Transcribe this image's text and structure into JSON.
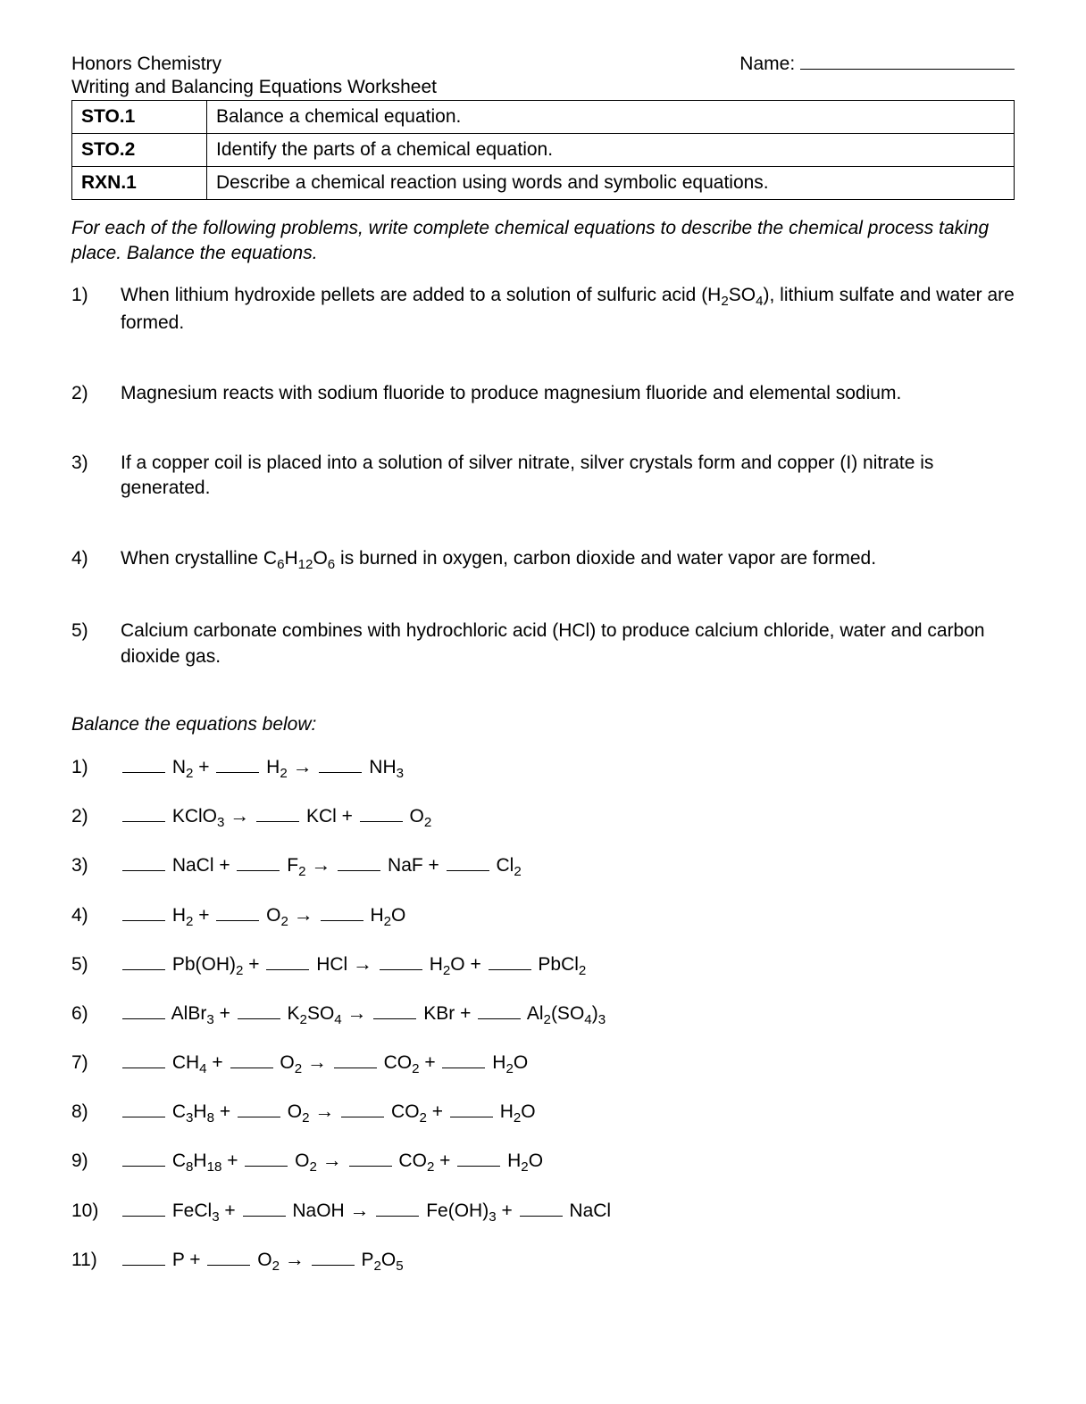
{
  "header": {
    "course": "Honors Chemistry",
    "name_label": "Name:",
    "subtitle": "Writing and Balancing Equations Worksheet"
  },
  "objectives": [
    {
      "code": "STO.1",
      "desc": "Balance a chemical equation."
    },
    {
      "code": "STO.2",
      "desc": "Identify the parts of a chemical equation."
    },
    {
      "code": "RXN.1",
      "desc": "Describe a chemical reaction using words and symbolic equations."
    }
  ],
  "instructions": "For each of the following problems, write complete chemical equations to describe the chemical process taking place.  Balance the equations.",
  "problems": [
    {
      "n": "1)",
      "html": "When lithium hydroxide pellets are added to a solution of sulfuric acid (H<sub>2</sub>SO<sub>4</sub>), lithium sulfate and water are formed."
    },
    {
      "n": "2)",
      "html": "Magnesium reacts with sodium fluoride to produce magnesium fluoride and elemental sodium."
    },
    {
      "n": "3)",
      "html": "If a copper coil is placed into a solution of silver nitrate, silver crystals form and copper (I) nitrate is generated."
    },
    {
      "n": "4)",
      "html": "When crystalline C<sub>6</sub>H<sub>12</sub>O<sub>6</sub> is burned in oxygen, carbon dioxide and water vapor are formed."
    },
    {
      "n": "5)",
      "html": "Calcium carbonate combines with hydrochloric acid (HCl) to produce calcium chloride, water and carbon dioxide gas."
    }
  ],
  "balance_heading": "Balance the equations below:",
  "equations": [
    {
      "n": "1)",
      "terms": [
        "N<sub>2</sub>",
        "+",
        "H<sub>2</sub>",
        "→",
        "NH<sub>3</sub>"
      ]
    },
    {
      "n": "2)",
      "terms": [
        "KClO<sub>3</sub>",
        "→",
        "KCl",
        "+",
        "O<sub>2</sub>"
      ]
    },
    {
      "n": "3)",
      "terms": [
        "NaCl",
        "+",
        "F<sub>2</sub>",
        "→",
        "NaF",
        "+",
        "Cl<sub>2</sub>"
      ]
    },
    {
      "n": "4)",
      "terms": [
        "H<sub>2</sub>",
        "+",
        "O<sub>2</sub>",
        "→",
        "H<sub>2</sub>O"
      ]
    },
    {
      "n": "5)",
      "terms": [
        "Pb(OH)<sub>2</sub>",
        "+",
        "HCl",
        "→",
        "H<sub>2</sub>O",
        "+",
        "PbCl<sub>2</sub>"
      ]
    },
    {
      "n": "6)",
      "terms": [
        "AlBr<sub>3</sub>",
        "+",
        "K<sub>2</sub>SO<sub>4</sub>",
        "→",
        "KBr",
        "+",
        "Al<sub>2</sub>(SO<sub>4</sub>)<sub>3</sub>"
      ]
    },
    {
      "n": "7)",
      "terms": [
        "CH<sub>4</sub>",
        "+",
        "O<sub>2</sub>",
        "→",
        "CO<sub>2</sub>",
        "+",
        "H<sub>2</sub>O"
      ]
    },
    {
      "n": "8)",
      "terms": [
        "C<sub>3</sub>H<sub>8</sub>",
        "+",
        "O<sub>2</sub>",
        "→",
        "CO<sub>2</sub>",
        "+",
        "H<sub>2</sub>O"
      ]
    },
    {
      "n": "9)",
      "terms": [
        "C<sub>8</sub>H<sub>18</sub>",
        "+",
        "O<sub>2</sub>",
        "→",
        "CO<sub>2</sub>",
        "+",
        "H<sub>2</sub>O"
      ]
    },
    {
      "n": "10)",
      "terms": [
        "FeCl<sub>3</sub>",
        "+",
        "NaOH",
        "→",
        "Fe(OH)<sub>3</sub>",
        "+",
        "NaCl"
      ]
    },
    {
      "n": "11)",
      "terms": [
        "P",
        "+",
        "O<sub>2</sub>",
        "→",
        "P<sub>2</sub>O<sub>5</sub>"
      ]
    }
  ]
}
